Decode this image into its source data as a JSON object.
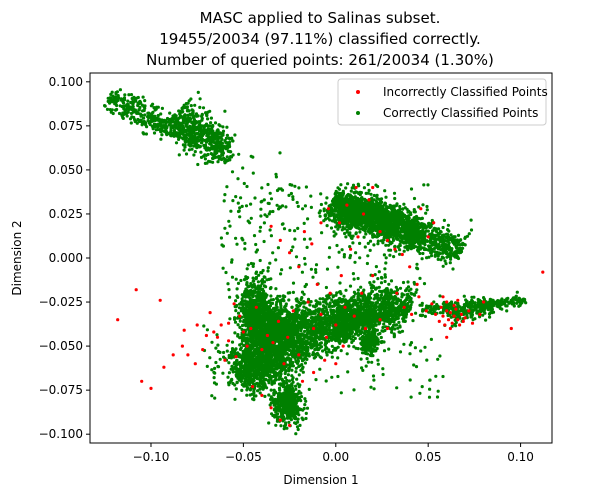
{
  "chart_data": {
    "type": "scatter",
    "title": [
      "MASC applied to Salinas subset.",
      "19455/20034 (97.11%) classified correctly.",
      "Number of queried points: 261/20034 (1.30%)"
    ],
    "xlabel": "Dimension 1",
    "ylabel": "Dimension 2",
    "xlim": [
      -0.133,
      0.117
    ],
    "ylim": [
      -0.105,
      0.105
    ],
    "x_ticks": [
      -0.1,
      -0.05,
      0.0,
      0.05,
      0.1
    ],
    "x_tick_labels": [
      "−0.10",
      "−0.05",
      "0.00",
      "0.05",
      "0.10"
    ],
    "y_ticks": [
      -0.1,
      -0.075,
      -0.05,
      -0.025,
      0.0,
      0.025,
      0.05,
      0.075,
      0.1
    ],
    "y_tick_labels": [
      "−0.100",
      "−0.075",
      "−0.050",
      "−0.025",
      "0.000",
      "0.025",
      "0.050",
      "0.075",
      "0.100"
    ],
    "grid": false,
    "legend_position": "upper right",
    "series": [
      {
        "name": "Incorrectly Classified Points",
        "color": "#ff0000",
        "points": [
          [
            -0.118,
            -0.035
          ],
          [
            -0.108,
            -0.018
          ],
          [
            -0.095,
            -0.024
          ],
          [
            -0.105,
            -0.07
          ],
          [
            -0.1,
            -0.074
          ],
          [
            -0.093,
            -0.062
          ],
          [
            -0.088,
            -0.055
          ],
          [
            -0.083,
            -0.05
          ],
          [
            -0.08,
            -0.055
          ],
          [
            -0.076,
            -0.06
          ],
          [
            -0.082,
            -0.041
          ],
          [
            -0.075,
            -0.038
          ],
          [
            -0.072,
            -0.052
          ],
          [
            -0.068,
            -0.031
          ],
          [
            -0.064,
            -0.045
          ],
          [
            -0.06,
            -0.058
          ],
          [
            -0.058,
            -0.037
          ],
          [
            -0.055,
            -0.026
          ],
          [
            -0.052,
            -0.033
          ],
          [
            -0.048,
            -0.05
          ],
          [
            -0.046,
            -0.04
          ],
          [
            -0.043,
            -0.028
          ],
          [
            -0.04,
            -0.052
          ],
          [
            -0.037,
            -0.044
          ],
          [
            -0.034,
            -0.048
          ],
          [
            -0.031,
            -0.036
          ],
          [
            -0.028,
            -0.06
          ],
          [
            -0.026,
            -0.045
          ],
          [
            -0.023,
            -0.03
          ],
          [
            -0.02,
            -0.055
          ],
          [
            -0.018,
            -0.07
          ],
          [
            -0.015,
            -0.025
          ],
          [
            -0.012,
            -0.04
          ],
          [
            -0.01,
            -0.015
          ],
          [
            -0.008,
            -0.032
          ],
          [
            -0.005,
            -0.045
          ],
          [
            -0.003,
            -0.02
          ],
          [
            0.0,
            -0.038
          ],
          [
            0.003,
            -0.01
          ],
          [
            0.005,
            -0.028
          ],
          [
            0.008,
            0.005
          ],
          [
            0.01,
            -0.033
          ],
          [
            0.012,
            0.012
          ],
          [
            0.014,
            -0.02
          ],
          [
            0.016,
            -0.04
          ],
          [
            -0.035,
            0.018
          ],
          [
            -0.03,
            0.01
          ],
          [
            -0.025,
            0.003
          ],
          [
            -0.02,
            -0.005
          ],
          [
            -0.017,
            0.015
          ],
          [
            -0.013,
            0.008
          ],
          [
            -0.008,
            0.02
          ],
          [
            -0.004,
            0.028
          ],
          [
            0.002,
            0.02
          ],
          [
            0.006,
            0.03
          ],
          [
            0.011,
            0.04
          ],
          [
            0.015,
            0.025
          ],
          [
            0.018,
            0.033
          ],
          [
            0.02,
            0.04
          ],
          [
            0.024,
            0.015
          ],
          [
            0.028,
            0.01
          ],
          [
            0.032,
            0.005
          ],
          [
            0.036,
            0.002
          ],
          [
            0.04,
            -0.005
          ],
          [
            0.044,
            -0.015
          ],
          [
            0.046,
            0.028
          ],
          [
            0.05,
            0.012
          ],
          [
            0.053,
            0.02
          ],
          [
            0.02,
            -0.01
          ],
          [
            0.024,
            -0.035
          ],
          [
            0.028,
            -0.04
          ],
          [
            0.033,
            -0.02
          ],
          [
            0.037,
            -0.028
          ],
          [
            0.041,
            -0.032
          ],
          [
            0.045,
            -0.022
          ],
          [
            0.049,
            -0.03
          ],
          [
            0.052,
            -0.026
          ],
          [
            0.054,
            -0.032
          ],
          [
            0.056,
            -0.036
          ],
          [
            0.057,
            -0.028
          ],
          [
            0.058,
            -0.033
          ],
          [
            0.059,
            -0.038
          ],
          [
            0.06,
            -0.03
          ],
          [
            0.061,
            -0.035
          ],
          [
            0.062,
            -0.031
          ],
          [
            0.063,
            -0.037
          ],
          [
            0.064,
            -0.033
          ],
          [
            0.065,
            -0.029
          ],
          [
            0.066,
            -0.035
          ],
          [
            0.067,
            -0.038
          ],
          [
            0.068,
            -0.032
          ],
          [
            0.069,
            -0.036
          ],
          [
            0.07,
            -0.034
          ],
          [
            0.072,
            -0.03
          ],
          [
            0.074,
            -0.037
          ],
          [
            0.062,
            -0.04
          ],
          [
            0.064,
            -0.027
          ],
          [
            0.06,
            -0.025
          ],
          [
            0.058,
            -0.022
          ],
          [
            0.066,
            -0.024
          ],
          [
            0.08,
            -0.025
          ],
          [
            0.078,
            -0.032
          ],
          [
            0.095,
            -0.04
          ],
          [
            0.112,
            -0.008
          ],
          [
            0.06,
            -0.045
          ],
          [
            -0.03,
            -0.092
          ],
          [
            -0.025,
            -0.095
          ],
          [
            -0.035,
            -0.085
          ],
          [
            -0.04,
            -0.078
          ],
          [
            -0.045,
            -0.073
          ],
          [
            -0.012,
            -0.065
          ],
          [
            -0.006,
            -0.058
          ],
          [
            0.0,
            -0.06
          ],
          [
            0.004,
            -0.05
          ],
          [
            -0.05,
            -0.042
          ],
          [
            -0.054,
            -0.056
          ],
          [
            -0.058,
            -0.047
          ],
          [
            -0.062,
            -0.038
          ],
          [
            -0.066,
            -0.042
          ],
          [
            -0.07,
            -0.044
          ]
        ]
      },
      {
        "name": "Correctly Classified Points",
        "color": "#008000",
        "clusters": [
          {
            "type": "band",
            "from": [
              -0.123,
              0.091
            ],
            "to": [
              -0.073,
              0.066
            ],
            "thick": 0.0035,
            "n": 420
          },
          {
            "type": "band",
            "from": [
              -0.085,
              0.084
            ],
            "to": [
              -0.062,
              0.06
            ],
            "thick": 0.0055,
            "n": 340
          },
          {
            "type": "band",
            "from": [
              -0.07,
              0.073
            ],
            "to": [
              -0.058,
              0.055
            ],
            "thick": 0.003,
            "n": 120
          },
          {
            "type": "blob",
            "center": [
              0.01,
              0.025
            ],
            "rx": 0.011,
            "ry": 0.008,
            "n": 500
          },
          {
            "type": "band",
            "from": [
              -0.002,
              0.033
            ],
            "to": [
              0.045,
              0.012
            ],
            "thick": 0.0055,
            "n": 900
          },
          {
            "type": "band",
            "from": [
              0.02,
              0.025
            ],
            "to": [
              0.068,
              0.003
            ],
            "thick": 0.0045,
            "n": 700
          },
          {
            "type": "band",
            "from": [
              0.045,
              -0.03
            ],
            "to": [
              0.103,
              -0.024
            ],
            "thick": 0.0018,
            "n": 230
          },
          {
            "type": "band",
            "from": [
              0.06,
              -0.033
            ],
            "to": [
              0.085,
              -0.027
            ],
            "thick": 0.003,
            "n": 140
          },
          {
            "type": "band",
            "from": [
              -0.05,
              -0.048
            ],
            "to": [
              0.03,
              -0.025
            ],
            "thick": 0.0075,
            "n": 1300
          },
          {
            "type": "band",
            "from": [
              0.025,
              -0.025
            ],
            "to": [
              0.04,
              -0.03
            ],
            "thick": 0.006,
            "n": 260
          },
          {
            "type": "blob",
            "center": [
              -0.043,
              -0.031
            ],
            "rx": 0.0075,
            "ry": 0.015,
            "n": 600
          },
          {
            "type": "blob",
            "center": [
              -0.033,
              -0.04
            ],
            "rx": 0.01,
            "ry": 0.014,
            "n": 500
          },
          {
            "type": "blob",
            "center": [
              -0.042,
              -0.06
            ],
            "rx": 0.015,
            "ry": 0.011,
            "n": 600
          },
          {
            "type": "band",
            "from": [
              -0.052,
              -0.07
            ],
            "to": [
              -0.005,
              -0.04
            ],
            "thick": 0.006,
            "n": 600
          },
          {
            "type": "blob",
            "center": [
              -0.026,
              -0.083
            ],
            "rx": 0.0065,
            "ry": 0.0095,
            "n": 400
          },
          {
            "type": "blob",
            "center": [
              0.008,
              -0.035
            ],
            "rx": 0.011,
            "ry": 0.007,
            "n": 330
          },
          {
            "type": "blob",
            "center": [
              0.018,
              -0.048
            ],
            "rx": 0.0045,
            "ry": 0.006,
            "n": 160
          },
          {
            "type": "blob",
            "center": [
              0.003,
              -0.043
            ],
            "rx": 0.005,
            "ry": 0.005,
            "n": 120
          },
          {
            "type": "scatter",
            "xlim": [
              -0.062,
              0.05
            ],
            "ylim": [
              -0.02,
              0.042
            ],
            "n": 230
          },
          {
            "type": "scatter",
            "xlim": [
              -0.072,
              0.06
            ],
            "ylim": [
              -0.08,
              -0.02
            ],
            "n": 180
          },
          {
            "type": "scatter",
            "xlim": [
              -0.06,
              -0.03
            ],
            "ylim": [
              0.0,
              0.06
            ],
            "n": 40
          }
        ]
      }
    ]
  }
}
